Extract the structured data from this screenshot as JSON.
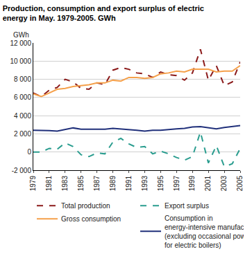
{
  "chart_data": {
    "type": "line",
    "title": "Production, consumption and export surplus of electric energy in May. 1979-2005. GWh",
    "y_label": "GWh",
    "x": [
      1979,
      1980,
      1981,
      1982,
      1983,
      1984,
      1985,
      1986,
      1987,
      1988,
      1989,
      1990,
      1991,
      1992,
      1993,
      1994,
      1995,
      1996,
      1997,
      1998,
      1999,
      2000,
      2001,
      2002,
      2003,
      2004,
      2005
    ],
    "xlim": [
      1979,
      2005
    ],
    "xticks": [
      1979,
      1981,
      1983,
      1985,
      1987,
      1989,
      1991,
      1993,
      1995,
      1997,
      1999,
      2001,
      2003,
      2005
    ],
    "ylim": [
      -2000,
      12000
    ],
    "yticks": [
      {
        "value": -2000,
        "label": "-2 000"
      },
      0,
      {
        "value": 2000,
        "label": "2 000"
      },
      {
        "value": 4000,
        "label": "4 000"
      },
      {
        "value": 6000,
        "label": "6 000"
      },
      {
        "value": 8000,
        "label": "8 000"
      },
      {
        "value": 10000,
        "label": "10 000"
      },
      {
        "value": 12000,
        "label": "12 000"
      }
    ],
    "grid": true,
    "legend": "bottom",
    "series": [
      {
        "name": "Total production",
        "color": "#8b1a1a",
        "line_style": "dash",
        "values": [
          6500,
          6100,
          6800,
          7100,
          8000,
          7700,
          7000,
          6900,
          7600,
          7400,
          9000,
          9300,
          9100,
          8700,
          8600,
          8200,
          8800,
          8500,
          8400,
          7900,
          8700,
          11300,
          7900,
          9500,
          7300,
          7700,
          9900
        ]
      },
      {
        "name": "Export surplus",
        "color": "#2a9d8f",
        "line_style": "dash",
        "values": [
          0,
          0,
          400,
          300,
          1000,
          600,
          -300,
          -500,
          -100,
          -200,
          1100,
          1500,
          900,
          500,
          600,
          -200,
          100,
          -200,
          -600,
          -900,
          -500,
          2200,
          -1200,
          700,
          -1600,
          -1300,
          400
        ]
      },
      {
        "name": "Gross consumption",
        "color": "#f5a04a",
        "line_style": "solid",
        "values": [
          6400,
          6100,
          6500,
          6900,
          7000,
          7200,
          7300,
          7400,
          7600,
          7600,
          7900,
          7800,
          8200,
          8200,
          8100,
          8200,
          8600,
          8700,
          8900,
          8800,
          9100,
          9100,
          9100,
          8800,
          8900,
          8900,
          9500
        ]
      },
      {
        "name": "Consumption in energy-intensive manufacturing (excluding occasional power for electric boilers)",
        "color": "#1f2f7a",
        "line_style": "solid",
        "values": [
          2400,
          2400,
          2350,
          2300,
          2500,
          2650,
          2500,
          2500,
          2450,
          2500,
          2600,
          2550,
          2500,
          2400,
          2300,
          2400,
          2400,
          2500,
          2550,
          2600,
          2750,
          2800,
          2700,
          2550,
          2700,
          2800,
          2900
        ]
      }
    ]
  }
}
